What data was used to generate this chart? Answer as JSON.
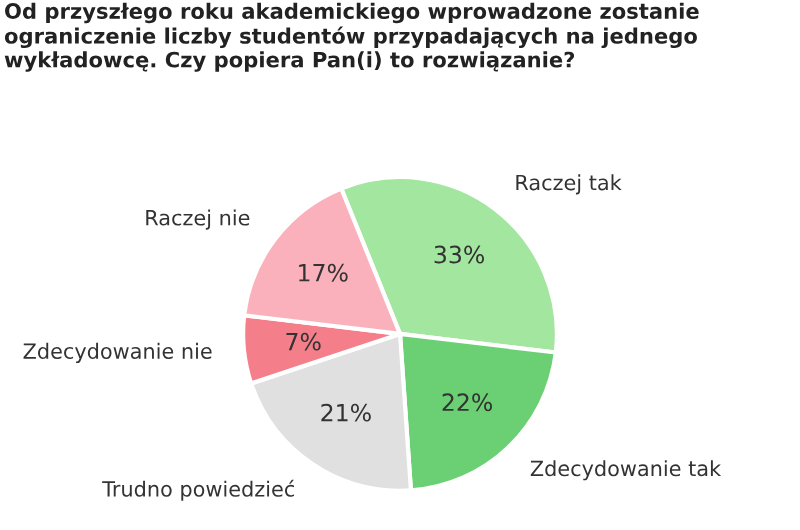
{
  "chart_data": {
    "type": "pie",
    "title": "Od przyszłego roku akademickiego wprowadzone zostanie ograniczenie liczby studentów przypadających na jednego wykładowcę. Czy popiera Pan(i) to rozwiązanie?",
    "categories": [
      "Raczej tak",
      "Zdecydowanie tak",
      "Trudno powiedzieć",
      "Zdecydowanie nie",
      "Raczej nie"
    ],
    "values": [
      33,
      22,
      21,
      7,
      17
    ],
    "value_labels": [
      "33%",
      "22%",
      "21%",
      "7%",
      "17%"
    ],
    "colors": [
      "#a3e6a0",
      "#6bd074",
      "#e0e0e0",
      "#f47f8a",
      "#fbb1bb"
    ],
    "legend": false
  }
}
